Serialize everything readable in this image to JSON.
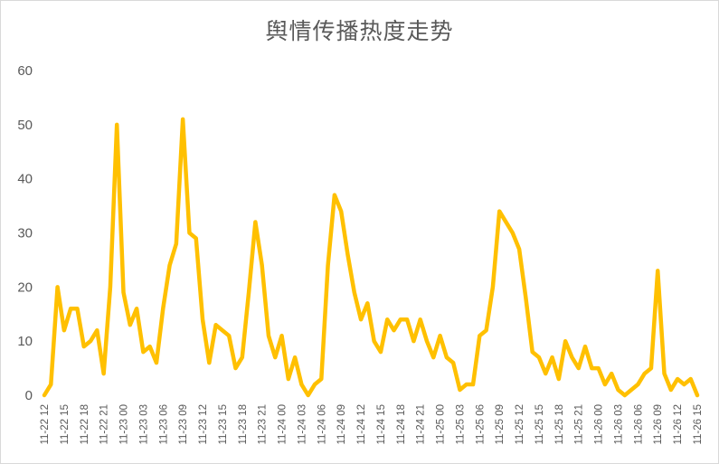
{
  "chart_data": {
    "type": "line",
    "title": "舆情传播热度走势",
    "xlabel": "",
    "ylabel": "",
    "ylim": [
      0,
      60
    ],
    "yticks": [
      0,
      10,
      20,
      30,
      40,
      50,
      60
    ],
    "grid": false,
    "legend": "none",
    "color": "#FFC000",
    "x_tick_labels": [
      "11-22 12",
      "11-22 15",
      "11-22 18",
      "11-22 21",
      "11-23 00",
      "11-23 03",
      "11-23 06",
      "11-23 09",
      "11-23 12",
      "11-23 15",
      "11-23 18",
      "11-23 21",
      "11-24 00",
      "11-24 03",
      "11-24 06",
      "11-24 09",
      "11-24 12",
      "11-24 15",
      "11-24 18",
      "11-24 21",
      "11-25 00",
      "11-25 03",
      "11-25 06",
      "11-25 09",
      "11-25 12",
      "11-25 15",
      "11-25 18",
      "11-25 21",
      "11-26 00",
      "11-26 03",
      "11-26 06",
      "11-26 09",
      "11-26 12",
      "11-26 15"
    ],
    "series": [
      {
        "values": [
          0,
          2,
          20,
          12,
          16,
          16,
          9,
          10,
          12,
          4,
          20,
          50,
          19,
          13,
          16,
          8,
          9,
          6,
          16,
          24,
          28,
          51,
          30,
          29,
          14,
          6,
          13,
          12,
          11,
          5,
          7,
          19,
          32,
          24,
          11,
          7,
          11,
          3,
          7,
          2,
          0,
          2,
          3,
          24,
          37,
          34,
          26,
          19,
          14,
          17,
          10,
          8,
          14,
          12,
          14,
          14,
          10,
          14,
          10,
          7,
          11,
          7,
          6,
          1,
          2,
          2,
          11,
          12,
          20,
          34,
          32,
          30,
          27,
          18,
          8,
          7,
          4,
          7,
          3,
          10,
          7,
          5,
          9,
          5,
          5,
          2,
          4,
          1,
          0,
          1,
          2,
          4,
          5,
          23,
          4,
          1,
          3,
          2,
          3,
          0
        ]
      }
    ]
  }
}
